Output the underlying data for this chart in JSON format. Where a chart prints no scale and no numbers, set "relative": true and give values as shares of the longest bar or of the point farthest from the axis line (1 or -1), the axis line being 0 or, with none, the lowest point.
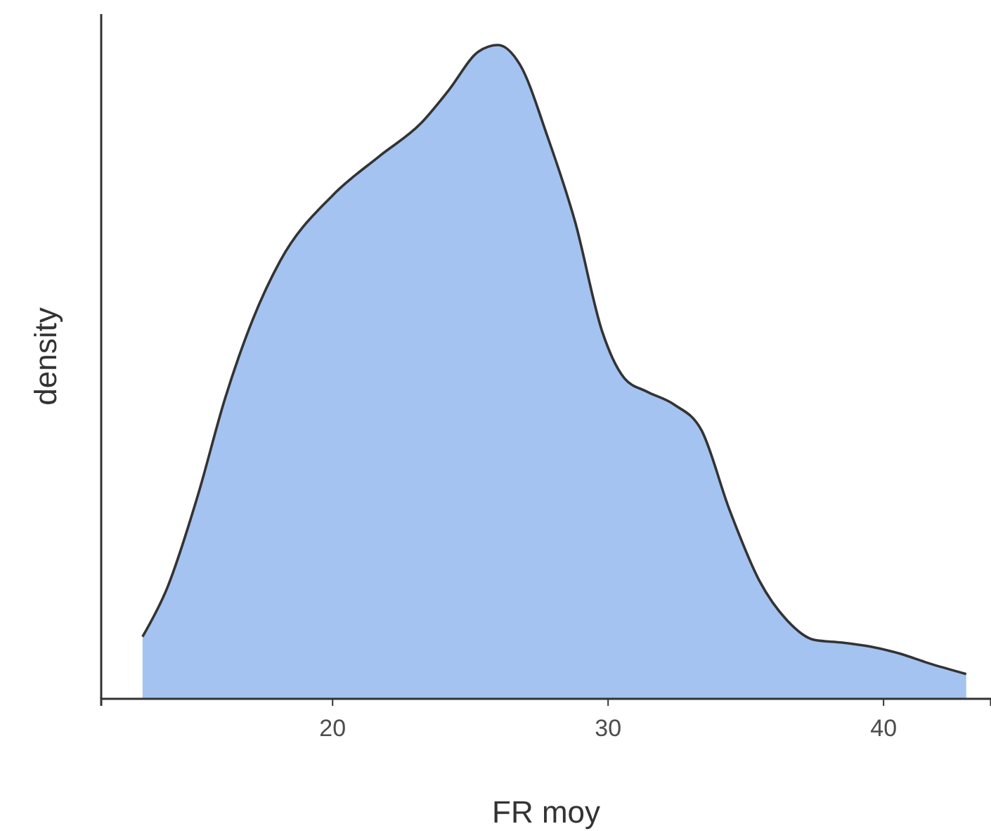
{
  "chart_data": {
    "type": "area",
    "xlabel": "FR moy",
    "ylabel": "density",
    "relative": true,
    "xlim": [
      11.6,
      43.9
    ],
    "xticks": [
      20,
      30,
      40
    ],
    "x": [
      13.1,
      14.0,
      15.1,
      16.1,
      17.1,
      18.1,
      20,
      21.7,
      23.2,
      24.2,
      25.3,
      26.0,
      26.8,
      27.8,
      28.8,
      29.8,
      30.6,
      31.4,
      32.4,
      33.4,
      34.4,
      35.5,
      36.5,
      37.5,
      38.5,
      39.5,
      40.6,
      41.6,
      43.0
    ],
    "series": [
      {
        "color": "#a4c3f1",
        "values": [
          0.095,
          0.17,
          0.31,
          0.46,
          0.58,
          0.67,
          0.77,
          0.83,
          0.88,
          0.93,
          0.99,
          1.0,
          0.97,
          0.86,
          0.73,
          0.56,
          0.49,
          0.47,
          0.45,
          0.41,
          0.29,
          0.18,
          0.12,
          0.09,
          0.086,
          0.08,
          0.069,
          0.055,
          0.038
        ]
      }
    ],
    "grid": false
  }
}
